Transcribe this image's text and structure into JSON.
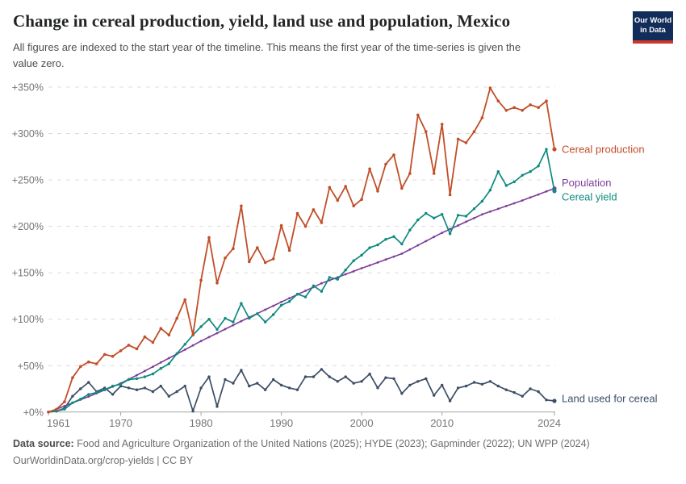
{
  "header": {
    "title": "Change in cereal production, yield, land use and population, Mexico",
    "subtitle1": "All figures are indexed to the start year of the timeline. This means the first year of the time-series is given the",
    "subtitle2": "value zero.",
    "logo": {
      "line1": "Our World",
      "line2": "in Data",
      "bg_color": "#122D5A",
      "bar_color": "#CA382C"
    }
  },
  "footer": {
    "label": "Data source:",
    "sources": " Food and Agriculture Organization of the United Nations (2025); HYDE (2023); Gapminder (2022); UN WPP (2024)",
    "license": "OurWorldinData.org/crop-yields | CC BY"
  },
  "chart_data": {
    "type": "line",
    "title": "Change in cereal production, yield, land use and population, Mexico",
    "xlabel": "",
    "ylabel": "",
    "xlim": [
      1961,
      2024
    ],
    "ylim": [
      0,
      350
    ],
    "grid": "horizontal-dashed",
    "legend_position": "right-of-line-ends",
    "xticks": [
      1961,
      1970,
      1980,
      1990,
      2000,
      2010,
      2024
    ],
    "yticks": [
      0,
      50,
      100,
      150,
      200,
      250,
      300,
      350
    ],
    "ytick_labels": [
      "+0%",
      "+50%",
      "+100%",
      "+150%",
      "+200%",
      "+250%",
      "+300%",
      "+350%"
    ],
    "x": [
      1961,
      1962,
      1963,
      1964,
      1965,
      1966,
      1967,
      1968,
      1969,
      1970,
      1971,
      1972,
      1973,
      1974,
      1975,
      1976,
      1977,
      1978,
      1979,
      1980,
      1981,
      1982,
      1983,
      1984,
      1985,
      1986,
      1987,
      1988,
      1989,
      1990,
      1991,
      1992,
      1993,
      1994,
      1995,
      1996,
      1997,
      1998,
      1999,
      2000,
      2001,
      2002,
      2003,
      2004,
      2005,
      2006,
      2007,
      2008,
      2009,
      2010,
      2011,
      2012,
      2013,
      2014,
      2015,
      2016,
      2017,
      2018,
      2019,
      2020,
      2021,
      2022,
      2023,
      2024
    ],
    "value_unit": "% change since 1961",
    "series": [
      {
        "name": "Land used for cereal",
        "color": "#3C4E66",
        "values": [
          0,
          1,
          4,
          17,
          25,
          32,
          22,
          26,
          19,
          28,
          26,
          24,
          26,
          22,
          28,
          17,
          22,
          28,
          1,
          26,
          38,
          6,
          35,
          31,
          45,
          28,
          31,
          24,
          35,
          29,
          26,
          24,
          38,
          38,
          46,
          38,
          33,
          38,
          31,
          33,
          41,
          26,
          37,
          36,
          20,
          29,
          33,
          36,
          18,
          29,
          12,
          26,
          28,
          32,
          30,
          33,
          28,
          24,
          21,
          17,
          25,
          22,
          13,
          12
        ]
      },
      {
        "name": "Population",
        "color": "#7C3E99",
        "values": [
          0,
          3.1,
          6.4,
          9.8,
          13.3,
          16.7,
          20.2,
          23.7,
          27.3,
          31,
          35.3,
          39.7,
          44.2,
          48.8,
          53.4,
          58,
          62.6,
          67.2,
          71.8,
          76.5,
          80.7,
          85,
          89.3,
          93.6,
          97.9,
          102,
          106.1,
          110.3,
          114.4,
          118.6,
          122.6,
          126.6,
          130.6,
          134.6,
          138.7,
          141.9,
          145.1,
          148.4,
          151.6,
          154.9,
          158,
          161.1,
          164.3,
          167.4,
          170.6,
          175.1,
          179.6,
          184.1,
          188.6,
          193.1,
          197.1,
          201,
          205,
          208.9,
          212.9,
          215.9,
          218.9,
          221.9,
          224.9,
          227.9,
          231.1,
          234.3,
          237.6,
          240.8
        ]
      },
      {
        "name": "Cereal yield",
        "color": "#0E8A80",
        "values": [
          0,
          1,
          3,
          10,
          14,
          19,
          21,
          24,
          28,
          30,
          35,
          36,
          38,
          41,
          47,
          52,
          63,
          73,
          83,
          92,
          100,
          89,
          101,
          97,
          117,
          101,
          106,
          97,
          105,
          115,
          119,
          127,
          124,
          136,
          130,
          145,
          143,
          153,
          163,
          169,
          177,
          180,
          186,
          189,
          181,
          196,
          207,
          214,
          209,
          213,
          192,
          212,
          211,
          219,
          227,
          239,
          259,
          244,
          248,
          255,
          259,
          265,
          283,
          238
        ]
      },
      {
        "name": "Cereal production",
        "color": "#C14E28",
        "values": [
          0,
          3,
          11,
          37,
          49,
          54,
          52,
          62,
          60,
          66,
          72,
          68,
          81,
          75,
          90,
          83,
          101,
          121,
          83,
          142,
          188,
          139,
          166,
          176,
          222,
          162,
          177,
          161,
          165,
          201,
          174,
          214,
          200,
          218,
          204,
          242,
          228,
          243,
          222,
          229,
          262,
          238,
          267,
          277,
          241,
          257,
          320,
          302,
          257,
          310,
          234,
          294,
          290,
          302,
          317,
          349,
          335,
          325,
          328,
          325,
          331,
          328,
          335,
          283
        ]
      }
    ],
    "style": {
      "grid_color": "#DCDCDC",
      "axis_color": "#A6A6A6",
      "tick_text_color": "#757575"
    }
  }
}
